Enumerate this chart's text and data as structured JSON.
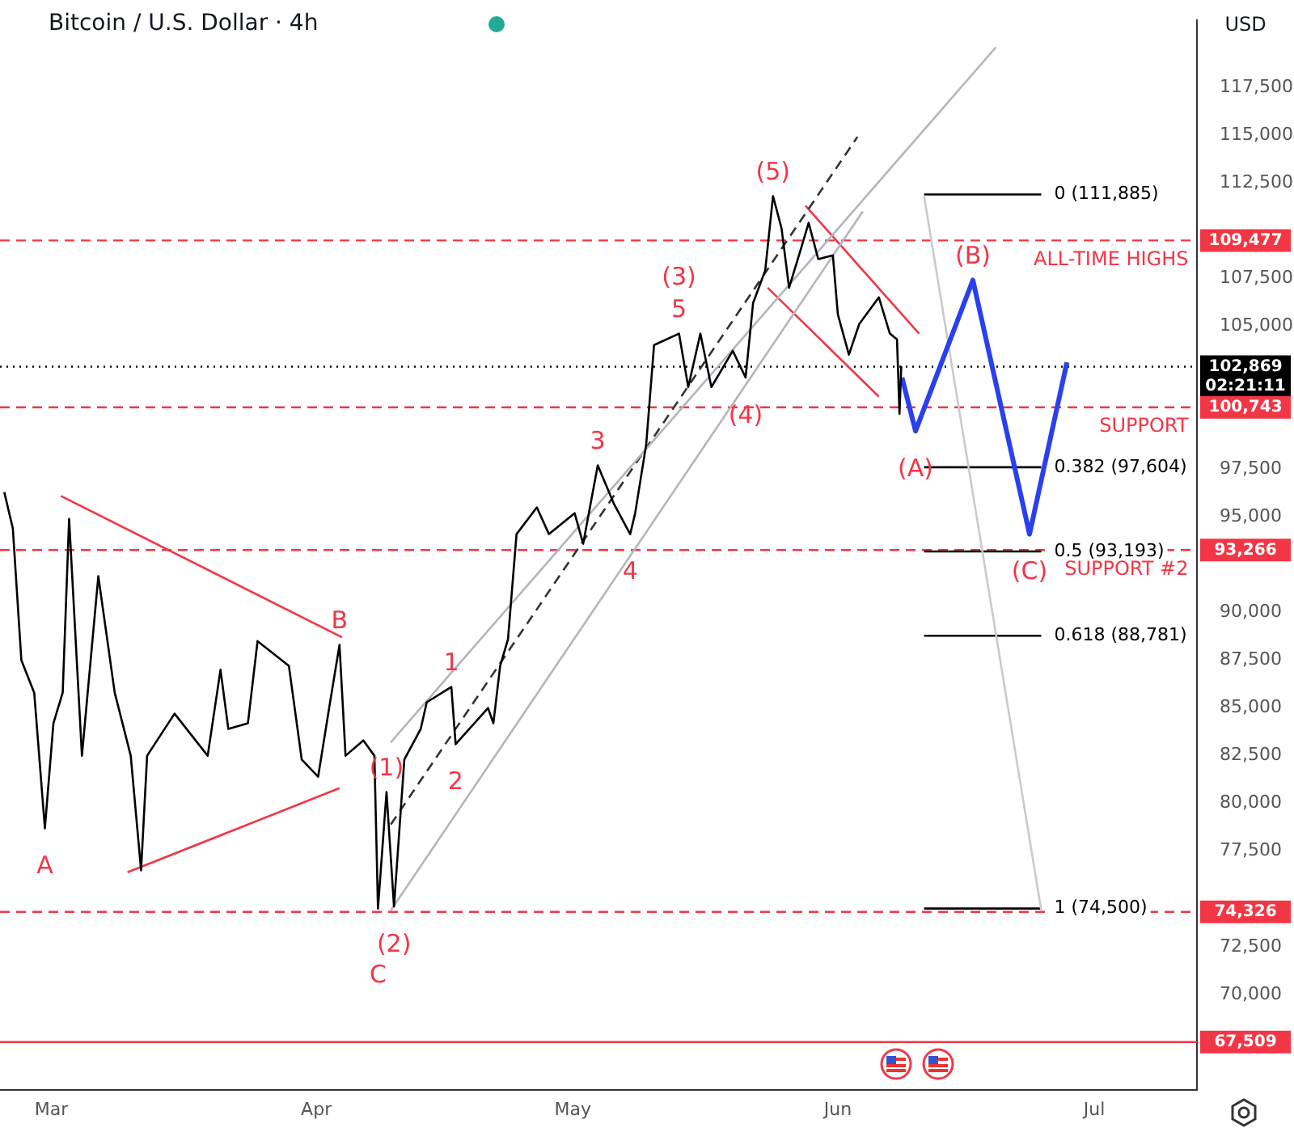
{
  "chart_data": {
    "type": "line",
    "title": "Bitcoin / U.S. Dollar · 4h",
    "ylabel": "USD",
    "marker": "none",
    "xlim": [
      "--02-23",
      "--07-13"
    ],
    "ylim": [
      65000,
      121000
    ],
    "xticks": [
      {
        "value": "--03-01",
        "label": "Mar"
      },
      {
        "value": "--04-01",
        "label": "Apr"
      },
      {
        "value": "--05-01",
        "label": "May"
      },
      {
        "value": "--06-01",
        "label": "Jun"
      },
      {
        "value": "--07-01",
        "label": "Jul"
      }
    ],
    "yticks": [
      {
        "value": 70000,
        "label": "70,000"
      },
      {
        "value": 72500,
        "label": "72,500"
      },
      {
        "value": 77500,
        "label": "77,500"
      },
      {
        "value": 80000,
        "label": "80,000"
      },
      {
        "value": 82500,
        "label": "82,500"
      },
      {
        "value": 85000,
        "label": "85,000"
      },
      {
        "value": 87500,
        "label": "87,500"
      },
      {
        "value": 90000,
        "label": "90,000"
      },
      {
        "value": 95000,
        "label": "95,000"
      },
      {
        "value": 97500,
        "label": "97,500"
      },
      {
        "value": 105000,
        "label": "105,000"
      },
      {
        "value": 107500,
        "label": "107,500"
      },
      {
        "value": 112500,
        "label": "112,500"
      },
      {
        "value": 115000,
        "label": "115,000"
      },
      {
        "value": 117500,
        "label": "117,500"
      }
    ],
    "series": [
      {
        "color": "#000000",
        "line_style": "solid",
        "x": [
          "--02-23T12:00",
          "--02-24T12:00",
          "--02-25T12:00",
          "--02-27",
          "--02-28T06:00",
          "--03-01T06:00",
          "--03-02T08:00",
          "--03-03T02:00",
          "--03-04T14:00",
          "--03-06T12:00",
          "--03-08T10:00",
          "--03-10T07:00",
          "--03-11T12:00",
          "--03-12T05:00",
          "--03-15T10:00",
          "--03-19T07:00",
          "--03-20T19:00",
          "--03-21T17:00",
          "--03-24",
          "--03-25T03:00",
          "--03-28T19:00",
          "--03-30T07:00",
          "--04-01T05:00",
          "--04-02T12:00",
          "--04-03T17:00",
          "--04-04T10:00",
          "--04-06T12:00",
          "--04-07T19:00",
          "--04-08T05:00",
          "--04-09T05:00",
          "--04-10T02:00",
          "--04-11T07:00",
          "--04-13T05:00",
          "--04-13T22:00",
          "--04-16T19:00",
          "--04-17T07:00",
          "--04-21T02:00",
          "--04-21T17:00",
          "--04-22T12:00",
          "--04-23T10:00",
          "--04-24T10:00",
          "--04-26T19:00",
          "--04-28T05:00",
          "--05-01T05:00",
          "--05-02T05:00",
          "--05-03T22:00",
          "--05-05T19:00",
          "--05-07T17:00",
          "--05-08T07:00",
          "--05-09T14:00",
          "--05-10T12:00",
          "--05-13T10:00",
          "--05-14T12:00",
          "--05-15T22:00",
          "--05-17T05:00",
          "--05-19T17:00",
          "--05-21T05:00",
          "--05-22T02:00",
          "--05-23T12:00",
          "--05-24T10:00",
          "--05-25T10:00",
          "--05-26T07:00",
          "--05-27T14:00",
          "--05-28T14:00",
          "--05-29T17:00",
          "--05-31T10:00",
          "--06-01",
          "--06-02T07:00",
          "--06-03T12:00",
          "--06-05T19:00",
          "--06-07T02:00",
          "--06-07T22:00",
          "--06-08T05:00",
          "--06-08T10:00"
        ],
        "values": [
          96300,
          94400,
          87500,
          85800,
          78700,
          84200,
          85800,
          94900,
          82500,
          91900,
          85800,
          82500,
          76500,
          82500,
          84700,
          82500,
          87000,
          83900,
          84200,
          88500,
          87200,
          82300,
          81400,
          85000,
          88300,
          82500,
          83300,
          82500,
          74500,
          80600,
          74600,
          82300,
          83900,
          85300,
          86100,
          83100,
          85000,
          84200,
          87200,
          88600,
          94100,
          95500,
          94100,
          95200,
          93600,
          97700,
          95700,
          94100,
          95200,
          98800,
          104000,
          104600,
          101800,
          104600,
          101800,
          103700,
          102300,
          106200,
          107900,
          111800,
          110100,
          107000,
          108900,
          110400,
          108500,
          108700,
          105600,
          103500,
          105100,
          106500,
          104600,
          104300,
          100400,
          102900
        ]
      },
      {
        "color": "#2a3ff0",
        "line_style": "solid",
        "x": [
          "--06-08T12:00",
          "--06-10T02:00",
          "--06-16T19:00",
          "--06-23T10:00",
          "--06-27T19:00"
        ],
        "values": [
          102300,
          99500,
          107400,
          94100,
          103100
        ]
      },
      {
        "color": "#f23645",
        "line_style": "solid",
        "x": [
          "--03-02T03:00",
          "--04-04"
        ],
        "values": [
          96100,
          88700
        ]
      },
      {
        "color": "#f23645",
        "line_style": "solid",
        "x": [
          "--03-09T22:00",
          "--04-03T17:00"
        ],
        "values": [
          76400,
          80800
        ]
      },
      {
        "color": "#b2b5be",
        "line_style": "solid",
        "x": [
          "--04-09T17:00",
          "--06-19T12:00"
        ],
        "values": [
          83200,
          119600
        ]
      },
      {
        "color": "#333333",
        "line_style": "dashed",
        "x": [
          "--04-09T17:00",
          "--06-03T07:00"
        ],
        "values": [
          78900,
          114900
        ]
      },
      {
        "color": "#b2b5be",
        "line_style": "solid",
        "x": [
          "--04-09T17:00",
          "--06-03T22:00"
        ],
        "values": [
          74400,
          111000
        ]
      },
      {
        "color": "#f23645",
        "line_style": "solid",
        "x": [
          "--05-28T05:00",
          "--06-10T12:00"
        ],
        "values": [
          111300,
          104600
        ]
      },
      {
        "color": "#f23645",
        "line_style": "solid",
        "x": [
          "--05-23T19:00",
          "--06-05T19:00"
        ],
        "values": [
          107000,
          101300
        ]
      },
      {
        "color": "#c8cad0",
        "line_style": "solid",
        "x": [
          "--06-11T02:00",
          "--06-24T19:00"
        ],
        "values": [
          111800,
          74400
        ]
      },
      {
        "name": "0 (111,885)",
        "color": "#000000",
        "line_style": "solid",
        "x": [
          "--06-11T02:00",
          "--06-24T19:00"
        ],
        "values": [
          111885,
          111885
        ]
      },
      {
        "name": "0.382 (97,604)",
        "color": "#000000",
        "line_style": "solid",
        "x": [
          "--06-11T02:00",
          "--06-24T19:00"
        ],
        "values": [
          97604,
          97604
        ]
      },
      {
        "name": "0.5 (93,193)",
        "color": "#000000",
        "line_style": "solid",
        "x": [
          "--06-11T02:00",
          "--06-24T19:00"
        ],
        "values": [
          93193,
          93193
        ]
      },
      {
        "name": "0.618 (88,781)",
        "color": "#000000",
        "line_style": "solid",
        "x": [
          "--06-11T02:00",
          "--06-24T19:00"
        ],
        "values": [
          88781,
          88781
        ]
      },
      {
        "name": "1 (74,500)",
        "color": "#000000",
        "line_style": "solid",
        "x": [
          "--06-11T02:00",
          "--06-24T19:00"
        ],
        "values": [
          74500,
          74500
        ]
      }
    ],
    "ref_lines": [
      {
        "axis": "y",
        "value": 109477,
        "label": "109,477",
        "color": "#f23645",
        "line_style": "dashed"
      },
      {
        "axis": "y",
        "value": 102869,
        "label": "102,869\n02:21:11",
        "color": "#000000",
        "line_style": "dotted"
      },
      {
        "axis": "y",
        "value": 100743,
        "label": "100,743",
        "color": "#f23645",
        "line_style": "dashed"
      },
      {
        "axis": "y",
        "value": 93266,
        "label": "93,266",
        "color": "#f23645",
        "line_style": "dashed"
      },
      {
        "axis": "y",
        "value": 74326,
        "label": "74,326",
        "color": "#f23645",
        "line_style": "dashed"
      },
      {
        "axis": "y",
        "value": 67509,
        "label": "67,509",
        "color": "#f23645",
        "line_style": "solid"
      }
    ],
    "annotations": [
      {
        "text": "(5)",
        "x": "--05-24T10:00",
        "y": 111800
      },
      {
        "text": "5",
        "x": "--05-13T10:00",
        "y": 104600
      },
      {
        "text": "(3)",
        "x": "--05-13T10:00",
        "y": 104600
      },
      {
        "text": "(4)",
        "x": "--05-21T05:00",
        "y": 102300
      },
      {
        "text": "3",
        "x": "--05-03T22:00",
        "y": 97700
      },
      {
        "text": "4",
        "x": "--05-07T17:00",
        "y": 94100
      },
      {
        "text": "1",
        "x": "--04-16T19:00",
        "y": 86100
      },
      {
        "text": "2",
        "x": "--04-17T07:00",
        "y": 83100
      },
      {
        "text": "(1)",
        "x": "--04-09T05:00",
        "y": 80600
      },
      {
        "text": "(2)",
        "x": "--04-10T02:00",
        "y": 74600
      },
      {
        "text": "A",
        "x": "--02-28T06:00",
        "y": 78700
      },
      {
        "text": "B",
        "x": "--04-03T17:00",
        "y": 88300
      },
      {
        "text": "C",
        "x": "--04-08T05:00",
        "y": 74500
      },
      {
        "text": "(A)",
        "x": "--06-10T02:00",
        "y": 99500
      },
      {
        "text": "(B)",
        "x": "--06-16T19:00",
        "y": 107400
      },
      {
        "text": "(C)",
        "x": "--06-23T10:00",
        "y": 94100
      },
      {
        "text": "ALL-TIME HIGHS",
        "x": "--07-12",
        "y": 109477
      },
      {
        "text": "SUPPORT",
        "x": "--07-12",
        "y": 100743
      },
      {
        "text": "SUPPORT #2",
        "x": "--07-12",
        "y": 93266
      }
    ]
  }
}
